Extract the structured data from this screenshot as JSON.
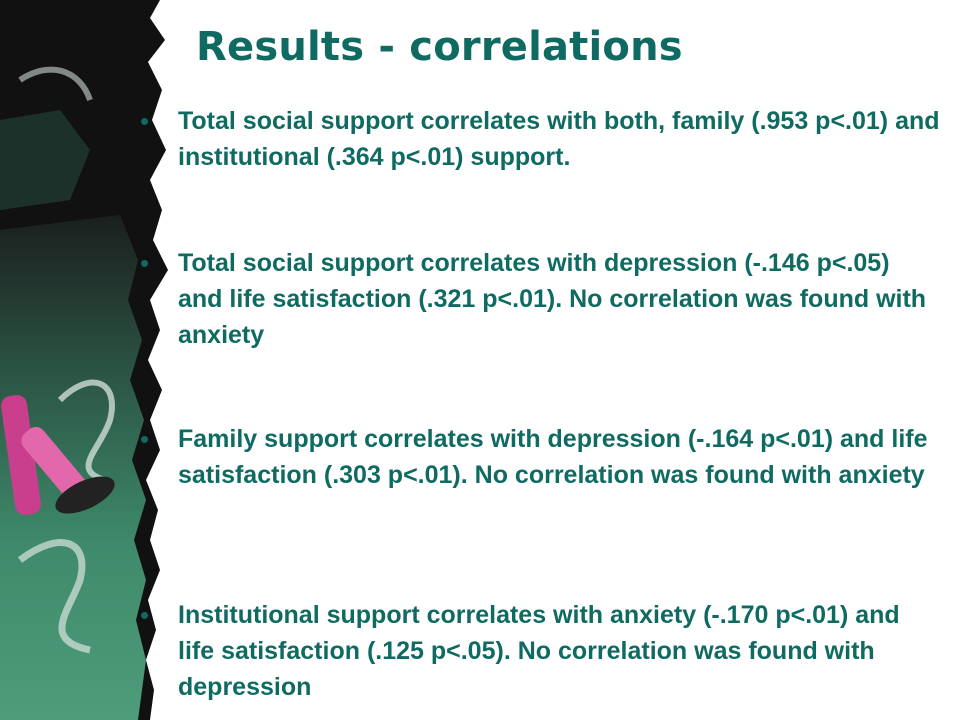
{
  "slide": {
    "title": "Results - correlations",
    "bullets": [
      {
        "text": "Total social support correlates with both, family (.953 p<.01) and institutional (.364 p<.01) support."
      },
      {
        "text": "Total social support correlates with depression (-.146 p<.05) and life satisfaction (.321 p<.01). No correlation was found with anxiety"
      },
      {
        "text": "Family support correlates with depression (-.164 p<.01) and life satisfaction (.303 p<.01). No correlation was found with anxiety"
      },
      {
        "text": "Institutional support correlates with anxiety (-.170 p<.01) and life satisfaction (.125 p<.05). No correlation was found with depression"
      }
    ],
    "bullet_symbol": "•"
  },
  "colors": {
    "text": "#0f6b62",
    "board_dark": "#111111",
    "board_green": "#3e8a6a",
    "chalk_pink": "#c93f8e"
  }
}
